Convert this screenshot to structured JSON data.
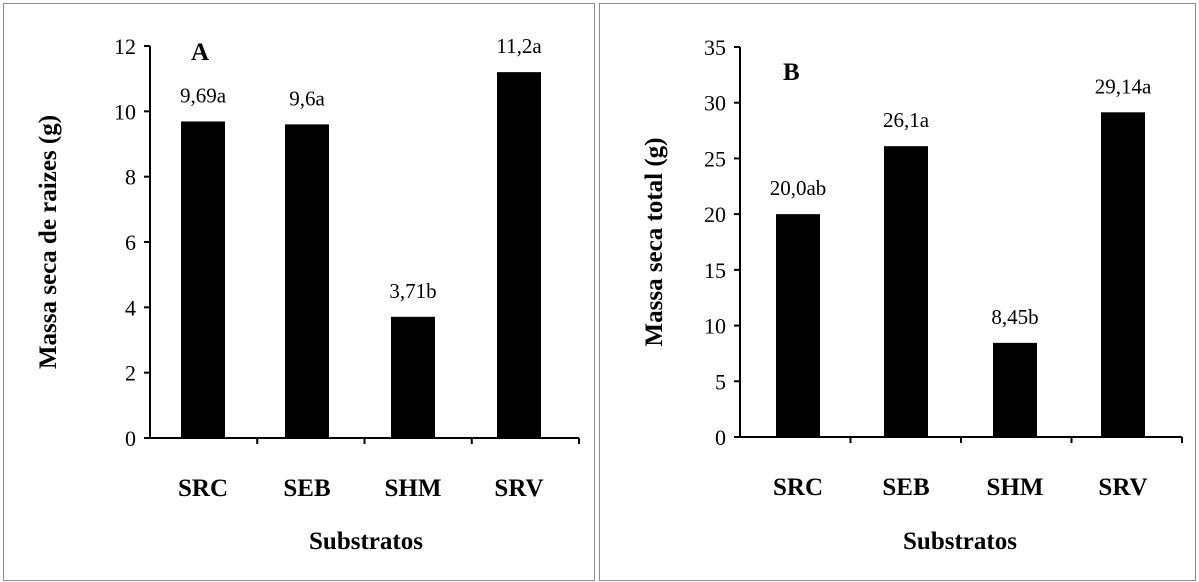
{
  "chart_data": [
    {
      "type": "bar",
      "panel_letter": "A",
      "categories": [
        "SRC",
        "SEB",
        "SHM",
        "SRV"
      ],
      "values": [
        9.69,
        9.6,
        3.71,
        11.2
      ],
      "data_labels": [
        "9,69a",
        "9,6a",
        "3,71b",
        "11,2a"
      ],
      "xlabel": "Substratos",
      "ylabel": "Massa seca de raizes (g)",
      "ylim": [
        0,
        12
      ],
      "yticks": [
        0,
        2,
        4,
        6,
        8,
        10,
        12
      ],
      "bar_color": "#000000",
      "grid": false,
      "legend": "none"
    },
    {
      "type": "bar",
      "panel_letter": "B",
      "categories": [
        "SRC",
        "SEB",
        "SHM",
        "SRV"
      ],
      "values": [
        20.0,
        26.1,
        8.45,
        29.14
      ],
      "data_labels": [
        "20,0ab",
        "26,1a",
        "8,45b",
        "29,14a"
      ],
      "xlabel": "Substratos",
      "ylabel": "Massa seca total (g)",
      "ylim": [
        0,
        35
      ],
      "yticks": [
        0,
        5,
        10,
        15,
        20,
        25,
        30,
        35
      ],
      "bar_color": "#000000",
      "grid": false,
      "legend": "none"
    }
  ]
}
